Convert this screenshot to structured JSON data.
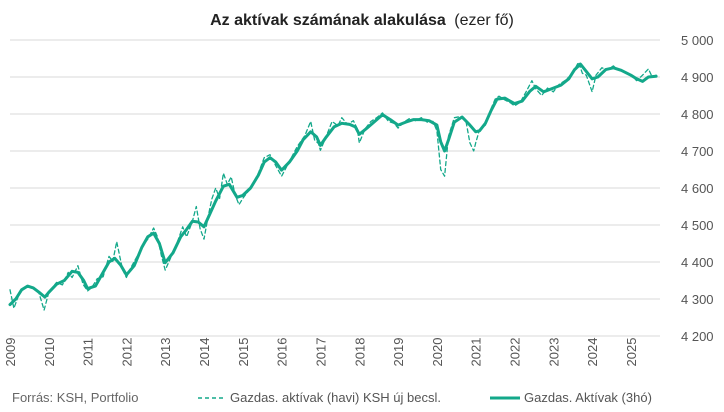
{
  "chart_data": {
    "type": "line",
    "title": "Az aktívak számának alakulása",
    "title_unit": "(ezer fő)",
    "source": "Forrás: KSH, Portfolio",
    "ylim": [
      4200,
      5000
    ],
    "yticks": [
      4200,
      4300,
      4400,
      4500,
      4600,
      4700,
      4800,
      4900,
      5000
    ],
    "ytick_labels": [
      "4 200",
      "4 300",
      "4 400",
      "4 500",
      "4 600",
      "4 700",
      "4 800",
      "4 900",
      "5 000"
    ],
    "xlim": [
      2009.0,
      2025.75
    ],
    "xticks": [
      "2009",
      "2010",
      "2011",
      "2012",
      "2013",
      "2014",
      "2015",
      "2016",
      "2017",
      "2018",
      "2019",
      "2020",
      "2021",
      "2022",
      "2023",
      "2024",
      "2025"
    ],
    "grid": true,
    "legend_position": "bottom",
    "color": "#13a88a",
    "series": [
      {
        "name": "Gazdas. aktívak (havi) KSH új becsl.",
        "style": "dashed",
        "points": [
          [
            2009.0,
            4325
          ],
          [
            2009.1,
            4275
          ],
          [
            2009.25,
            4318
          ],
          [
            2009.4,
            4332
          ],
          [
            2009.6,
            4330
          ],
          [
            2009.75,
            4315
          ],
          [
            2009.88,
            4270
          ],
          [
            2010.0,
            4318
          ],
          [
            2010.2,
            4345
          ],
          [
            2010.35,
            4338
          ],
          [
            2010.5,
            4372
          ],
          [
            2010.6,
            4358
          ],
          [
            2010.75,
            4390
          ],
          [
            2010.88,
            4340
          ],
          [
            2011.0,
            4322
          ],
          [
            2011.1,
            4330
          ],
          [
            2011.25,
            4355
          ],
          [
            2011.4,
            4360
          ],
          [
            2011.55,
            4415
          ],
          [
            2011.65,
            4402
          ],
          [
            2011.75,
            4455
          ],
          [
            2011.9,
            4380
          ],
          [
            2012.0,
            4358
          ],
          [
            2012.1,
            4382
          ],
          [
            2012.3,
            4420
          ],
          [
            2012.45,
            4448
          ],
          [
            2012.55,
            4462
          ],
          [
            2012.7,
            4492
          ],
          [
            2012.8,
            4468
          ],
          [
            2012.9,
            4418
          ],
          [
            2013.0,
            4378
          ],
          [
            2013.1,
            4402
          ],
          [
            2013.3,
            4450
          ],
          [
            2013.45,
            4495
          ],
          [
            2013.55,
            4468
          ],
          [
            2013.7,
            4510
          ],
          [
            2013.8,
            4550
          ],
          [
            2013.9,
            4490
          ],
          [
            2014.0,
            4462
          ],
          [
            2014.1,
            4520
          ],
          [
            2014.2,
            4570
          ],
          [
            2014.3,
            4600
          ],
          [
            2014.4,
            4572
          ],
          [
            2014.5,
            4640
          ],
          [
            2014.6,
            4610
          ],
          [
            2014.7,
            4630
          ],
          [
            2014.8,
            4582
          ],
          [
            2014.9,
            4555
          ],
          [
            2015.0,
            4572
          ],
          [
            2015.2,
            4600
          ],
          [
            2015.4,
            4640
          ],
          [
            2015.55,
            4682
          ],
          [
            2015.7,
            4690
          ],
          [
            2015.85,
            4660
          ],
          [
            2016.0,
            4632
          ],
          [
            2016.2,
            4672
          ],
          [
            2016.4,
            4712
          ],
          [
            2016.6,
            4742
          ],
          [
            2016.75,
            4780
          ],
          [
            2016.85,
            4730
          ],
          [
            2016.95,
            4720
          ],
          [
            2017.0,
            4702
          ],
          [
            2017.15,
            4740
          ],
          [
            2017.3,
            4780
          ],
          [
            2017.45,
            4768
          ],
          [
            2017.55,
            4790
          ],
          [
            2017.7,
            4772
          ],
          [
            2017.85,
            4782
          ],
          [
            2017.95,
            4760
          ],
          [
            2018.0,
            4722
          ],
          [
            2018.15,
            4760
          ],
          [
            2018.3,
            4780
          ],
          [
            2018.45,
            4790
          ],
          [
            2018.6,
            4803
          ],
          [
            2018.75,
            4780
          ],
          [
            2018.9,
            4775
          ],
          [
            2019.0,
            4762
          ],
          [
            2019.15,
            4778
          ],
          [
            2019.3,
            4788
          ],
          [
            2019.45,
            4782
          ],
          [
            2019.6,
            4790
          ],
          [
            2019.75,
            4778
          ],
          [
            2019.9,
            4780
          ],
          [
            2020.0,
            4755
          ],
          [
            2020.1,
            4650
          ],
          [
            2020.2,
            4632
          ],
          [
            2020.3,
            4740
          ],
          [
            2020.45,
            4790
          ],
          [
            2020.6,
            4793
          ],
          [
            2020.75,
            4780
          ],
          [
            2020.85,
            4722
          ],
          [
            2020.95,
            4700
          ],
          [
            2021.0,
            4722
          ],
          [
            2021.1,
            4758
          ],
          [
            2021.25,
            4770
          ],
          [
            2021.4,
            4815
          ],
          [
            2021.5,
            4840
          ],
          [
            2021.6,
            4848
          ],
          [
            2021.75,
            4838
          ],
          [
            2021.9,
            4830
          ],
          [
            2022.0,
            4822
          ],
          [
            2022.15,
            4832
          ],
          [
            2022.3,
            4860
          ],
          [
            2022.45,
            4890
          ],
          [
            2022.55,
            4868
          ],
          [
            2022.7,
            4850
          ],
          [
            2022.85,
            4870
          ],
          [
            2023.0,
            4860
          ],
          [
            2023.15,
            4880
          ],
          [
            2023.3,
            4890
          ],
          [
            2023.45,
            4905
          ],
          [
            2023.55,
            4920
          ],
          [
            2023.65,
            4940
          ],
          [
            2023.75,
            4910
          ],
          [
            2023.85,
            4905
          ],
          [
            2024.0,
            4860
          ],
          [
            2024.1,
            4905
          ],
          [
            2024.25,
            4925
          ],
          [
            2024.4,
            4920
          ],
          [
            2024.55,
            4930
          ],
          [
            2024.65,
            4920
          ],
          [
            2024.8,
            4915
          ],
          [
            2025.0,
            4905
          ],
          [
            2025.15,
            4890
          ],
          [
            2025.3,
            4905
          ],
          [
            2025.45,
            4922
          ],
          [
            2025.55,
            4900
          ],
          [
            2025.65,
            4905
          ]
        ]
      },
      {
        "name": "Gazdas. Aktívak (3hó)",
        "style": "solid",
        "points": [
          [
            2009.0,
            4285
          ],
          [
            2009.15,
            4300
          ],
          [
            2009.3,
            4325
          ],
          [
            2009.45,
            4335
          ],
          [
            2009.6,
            4330
          ],
          [
            2009.75,
            4318
          ],
          [
            2009.9,
            4305
          ],
          [
            2010.0,
            4318
          ],
          [
            2010.2,
            4340
          ],
          [
            2010.4,
            4350
          ],
          [
            2010.6,
            4375
          ],
          [
            2010.75,
            4372
          ],
          [
            2010.9,
            4350
          ],
          [
            2011.0,
            4328
          ],
          [
            2011.2,
            4335
          ],
          [
            2011.4,
            4372
          ],
          [
            2011.55,
            4400
          ],
          [
            2011.7,
            4410
          ],
          [
            2011.85,
            4392
          ],
          [
            2012.0,
            4365
          ],
          [
            2012.2,
            4390
          ],
          [
            2012.4,
            4440
          ],
          [
            2012.55,
            4468
          ],
          [
            2012.7,
            4478
          ],
          [
            2012.85,
            4450
          ],
          [
            2013.0,
            4398
          ],
          [
            2013.2,
            4425
          ],
          [
            2013.4,
            4468
          ],
          [
            2013.55,
            4488
          ],
          [
            2013.7,
            4510
          ],
          [
            2013.85,
            4508
          ],
          [
            2014.0,
            4495
          ],
          [
            2014.15,
            4530
          ],
          [
            2014.3,
            4565
          ],
          [
            2014.5,
            4605
          ],
          [
            2014.65,
            4610
          ],
          [
            2014.85,
            4575
          ],
          [
            2015.0,
            4580
          ],
          [
            2015.2,
            4600
          ],
          [
            2015.4,
            4635
          ],
          [
            2015.55,
            4670
          ],
          [
            2015.7,
            4682
          ],
          [
            2015.85,
            4670
          ],
          [
            2016.0,
            4648
          ],
          [
            2016.2,
            4670
          ],
          [
            2016.4,
            4700
          ],
          [
            2016.55,
            4730
          ],
          [
            2016.75,
            4752
          ],
          [
            2016.9,
            4738
          ],
          [
            2017.0,
            4715
          ],
          [
            2017.15,
            4738
          ],
          [
            2017.35,
            4765
          ],
          [
            2017.55,
            4775
          ],
          [
            2017.75,
            4772
          ],
          [
            2017.9,
            4765
          ],
          [
            2018.0,
            4745
          ],
          [
            2018.2,
            4762
          ],
          [
            2018.4,
            4780
          ],
          [
            2018.6,
            4798
          ],
          [
            2018.8,
            4785
          ],
          [
            2019.0,
            4770
          ],
          [
            2019.2,
            4778
          ],
          [
            2019.4,
            4785
          ],
          [
            2019.6,
            4785
          ],
          [
            2019.8,
            4782
          ],
          [
            2020.0,
            4770
          ],
          [
            2020.1,
            4725
          ],
          [
            2020.2,
            4700
          ],
          [
            2020.3,
            4730
          ],
          [
            2020.45,
            4778
          ],
          [
            2020.65,
            4792
          ],
          [
            2020.85,
            4770
          ],
          [
            2021.0,
            4752
          ],
          [
            2021.1,
            4755
          ],
          [
            2021.25,
            4775
          ],
          [
            2021.4,
            4810
          ],
          [
            2021.55,
            4840
          ],
          [
            2021.75,
            4843
          ],
          [
            2022.0,
            4828
          ],
          [
            2022.2,
            4835
          ],
          [
            2022.4,
            4862
          ],
          [
            2022.55,
            4875
          ],
          [
            2022.75,
            4860
          ],
          [
            2023.0,
            4870
          ],
          [
            2023.2,
            4878
          ],
          [
            2023.4,
            4895
          ],
          [
            2023.55,
            4920
          ],
          [
            2023.7,
            4935
          ],
          [
            2023.85,
            4915
          ],
          [
            2024.0,
            4895
          ],
          [
            2024.15,
            4900
          ],
          [
            2024.35,
            4920
          ],
          [
            2024.55,
            4925
          ],
          [
            2024.75,
            4918
          ],
          [
            2025.0,
            4905
          ],
          [
            2025.15,
            4895
          ],
          [
            2025.3,
            4888
          ],
          [
            2025.45,
            4900
          ],
          [
            2025.65,
            4902
          ]
        ]
      }
    ]
  }
}
